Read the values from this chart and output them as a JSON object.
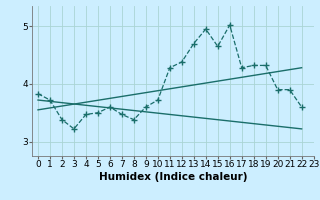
{
  "title": "",
  "xlabel": "Humidex (Indice chaleur)",
  "bg_color": "#cceeff",
  "grid_color": "#aad4d4",
  "line_color": "#1a6e6a",
  "xlim": [
    -0.5,
    23
  ],
  "ylim": [
    2.75,
    5.35
  ],
  "yticks": [
    3,
    4,
    5
  ],
  "xticks": [
    0,
    1,
    2,
    3,
    4,
    5,
    6,
    7,
    8,
    9,
    10,
    11,
    12,
    13,
    14,
    15,
    16,
    17,
    18,
    19,
    20,
    21,
    22,
    23
  ],
  "line1_x": [
    0,
    1,
    2,
    3,
    4,
    5,
    6,
    7,
    8,
    9,
    10,
    11,
    12,
    13,
    14,
    15,
    16,
    17,
    18,
    19,
    20,
    21,
    22
  ],
  "line1_y": [
    3.83,
    3.72,
    3.38,
    3.22,
    3.47,
    3.5,
    3.6,
    3.47,
    3.38,
    3.6,
    3.72,
    4.28,
    4.38,
    4.7,
    4.95,
    4.65,
    5.02,
    4.28,
    4.32,
    4.32,
    3.9,
    3.9,
    3.6
  ],
  "line2_x": [
    0,
    22
  ],
  "line2_y": [
    3.72,
    3.22
  ],
  "line3_x": [
    0,
    22
  ],
  "line3_y": [
    3.55,
    4.28
  ],
  "fontsize_label": 7.5,
  "fontsize_tick": 6.5
}
